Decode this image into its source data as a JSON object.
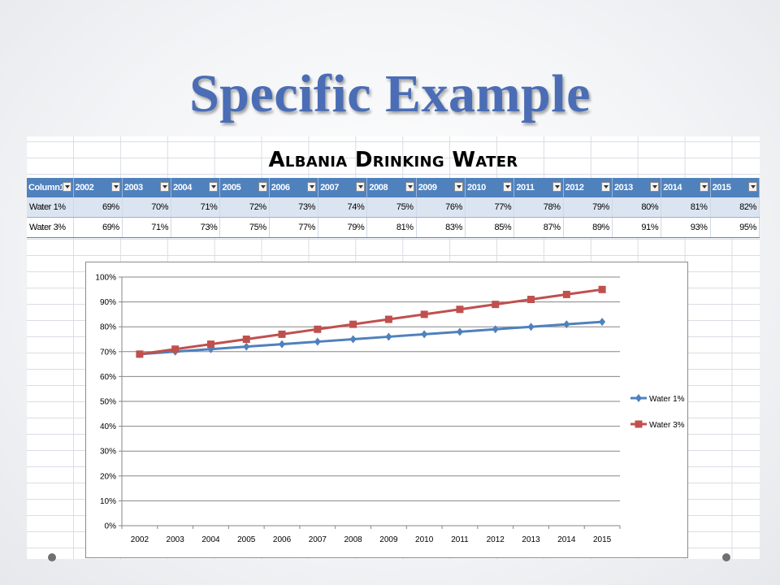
{
  "slide": {
    "title": "Specific Example"
  },
  "table": {
    "title": "Albania Drinking Water",
    "headers": [
      "Column1",
      "2002",
      "2003",
      "2004",
      "2005",
      "2006",
      "2007",
      "2008",
      "2009",
      "2010",
      "2011",
      "2012",
      "2013",
      "2014",
      "2015"
    ],
    "rows": [
      {
        "label": "Water 1%",
        "values": [
          "69%",
          "70%",
          "71%",
          "72%",
          "73%",
          "74%",
          "75%",
          "76%",
          "77%",
          "78%",
          "79%",
          "80%",
          "81%",
          "82%"
        ]
      },
      {
        "label": "Water 3%",
        "values": [
          "69%",
          "71%",
          "73%",
          "75%",
          "77%",
          "79%",
          "81%",
          "83%",
          "85%",
          "87%",
          "89%",
          "91%",
          "93%",
          "95%"
        ]
      }
    ]
  },
  "chart_data": {
    "type": "line",
    "x": [
      "2002",
      "2003",
      "2004",
      "2005",
      "2006",
      "2007",
      "2008",
      "2009",
      "2010",
      "2011",
      "2012",
      "2013",
      "2014",
      "2015"
    ],
    "series": [
      {
        "name": "Water 1%",
        "color": "#4f81bd",
        "marker": "diamond",
        "values": [
          69,
          70,
          71,
          72,
          73,
          74,
          75,
          76,
          77,
          78,
          79,
          80,
          81,
          82
        ]
      },
      {
        "name": "Water 3%",
        "color": "#c0504d",
        "marker": "square",
        "values": [
          69,
          71,
          73,
          75,
          77,
          79,
          81,
          83,
          85,
          87,
          89,
          91,
          93,
          95
        ]
      }
    ],
    "ylim": [
      0,
      100
    ],
    "yticks": [
      "0%",
      "10%",
      "20%",
      "30%",
      "40%",
      "50%",
      "60%",
      "70%",
      "80%",
      "90%",
      "100%"
    ],
    "grid": "horizontal",
    "legend": "right"
  },
  "colors": {
    "title": "#4a6db5",
    "header": "#4f81bd",
    "band": "#dbe5f1"
  }
}
